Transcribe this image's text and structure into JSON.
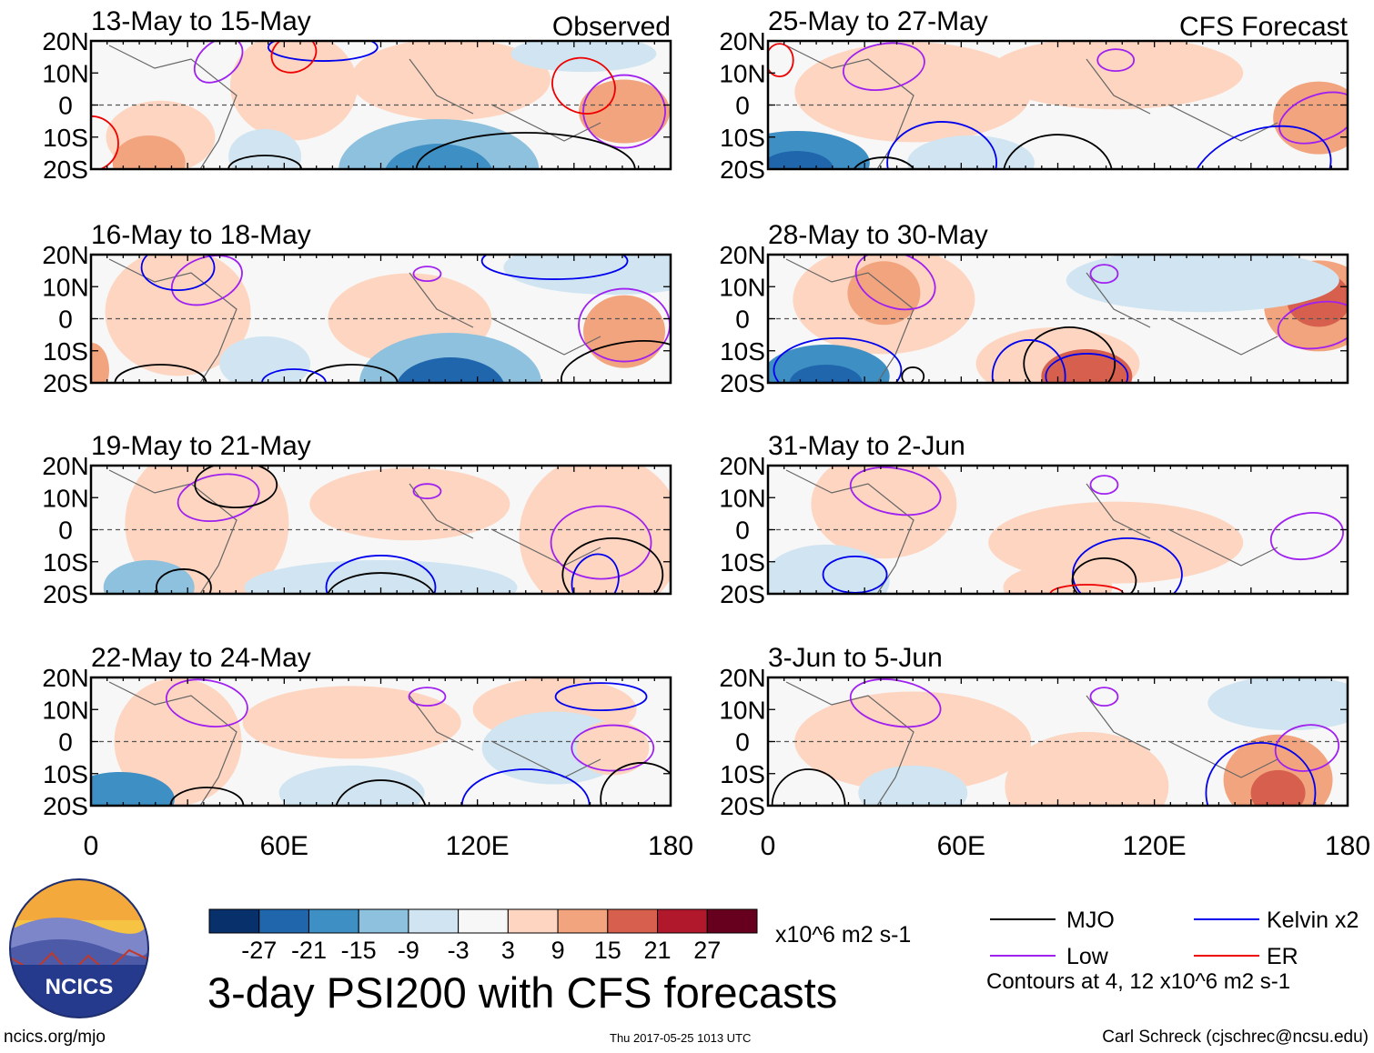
{
  "chart_data": {
    "type": "heatmap",
    "title": "3-day PSI200 with CFS forecasts",
    "variable": "PSI200 anomaly",
    "units": "x10^6 m2 s-1",
    "contour_note": "Contours at 4, 12 x10^6 m2 s-1",
    "columns": [
      {
        "label": "Observed",
        "panels": [
          "13-May to 15-May",
          "16-May to 18-May",
          "19-May to 21-May",
          "22-May to 24-May"
        ]
      },
      {
        "label": "CFS Forecast",
        "panels": [
          "25-May to 27-May",
          "28-May to 30-May",
          "31-May to 2-Jun",
          "3-Jun to 5-Jun"
        ]
      }
    ],
    "x_ticks": [
      "0",
      "60E",
      "120E",
      "180"
    ],
    "y_ticks": [
      "20N",
      "10N",
      "0",
      "10S",
      "20S"
    ],
    "xlim": [
      0,
      180
    ],
    "ylim": [
      -20,
      20
    ],
    "colorbar": {
      "ticks": [
        "-27",
        "-21",
        "-15",
        "-9",
        "-3",
        "3",
        "9",
        "15",
        "21",
        "27"
      ],
      "colors": [
        "#08306b",
        "#1f66ad",
        "#3e8fc4",
        "#8ec1de",
        "#d0e5f1",
        "#f7f7f7",
        "#fdd5c0",
        "#f2a47e",
        "#d6604d",
        "#b2182b",
        "#67001f"
      ]
    },
    "legend": [
      {
        "name": "MJO",
        "color": "#000000"
      },
      {
        "name": "Kelvin x2",
        "color": "#0000ee"
      },
      {
        "name": "Low",
        "color": "#a020f0"
      },
      {
        "name": "ER",
        "color": "#ee0000"
      }
    ]
  },
  "branding": {
    "logo_text": "NCICS",
    "site": "ncics.org/mjo",
    "timestamp": "Thu 2017-05-25 1013 UTC",
    "credit": "Carl Schreck (cjschrec@ncsu.edu)"
  }
}
